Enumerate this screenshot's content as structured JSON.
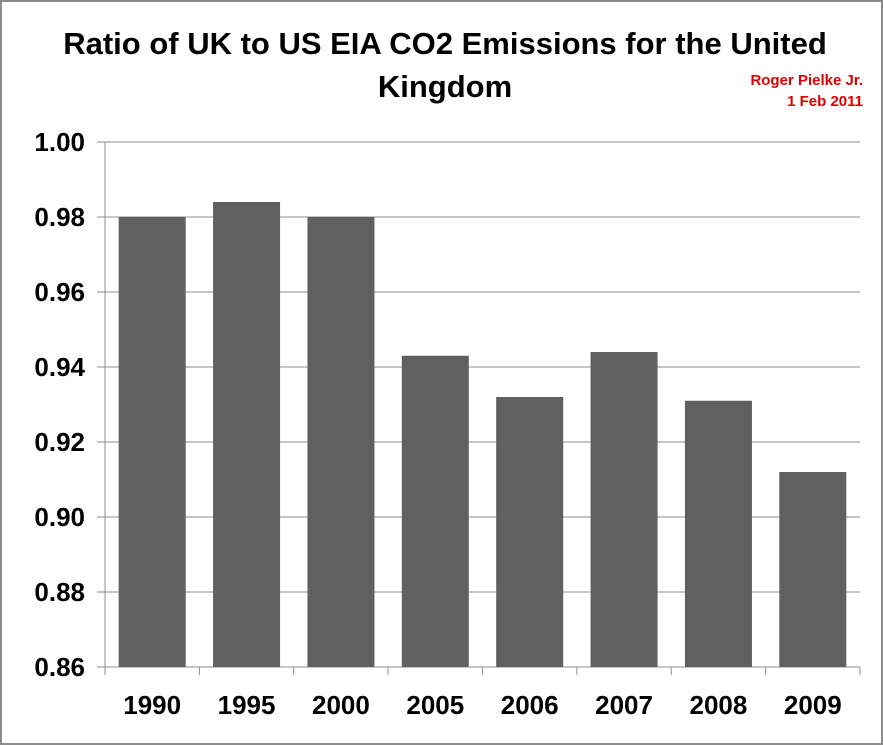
{
  "chart_data": {
    "type": "bar",
    "title": "Ratio of UK to US EIA CO2 Emissions for the United Kingdom",
    "annotation": [
      "Roger Pielke Jr.",
      "1 Feb 2011"
    ],
    "categories": [
      "1990",
      "1995",
      "2000",
      "2005",
      "2006",
      "2007",
      "2008",
      "2009"
    ],
    "values": [
      0.98,
      0.984,
      0.98,
      0.943,
      0.932,
      0.944,
      0.931,
      0.912
    ],
    "xlabel": "",
    "ylabel": "",
    "ylim": [
      0.86,
      1.0
    ],
    "yticks": [
      "0.86",
      "0.88",
      "0.90",
      "0.92",
      "0.94",
      "0.96",
      "0.98",
      "1.00"
    ],
    "grid": true,
    "legend": "none",
    "bar_color": "#606060"
  }
}
